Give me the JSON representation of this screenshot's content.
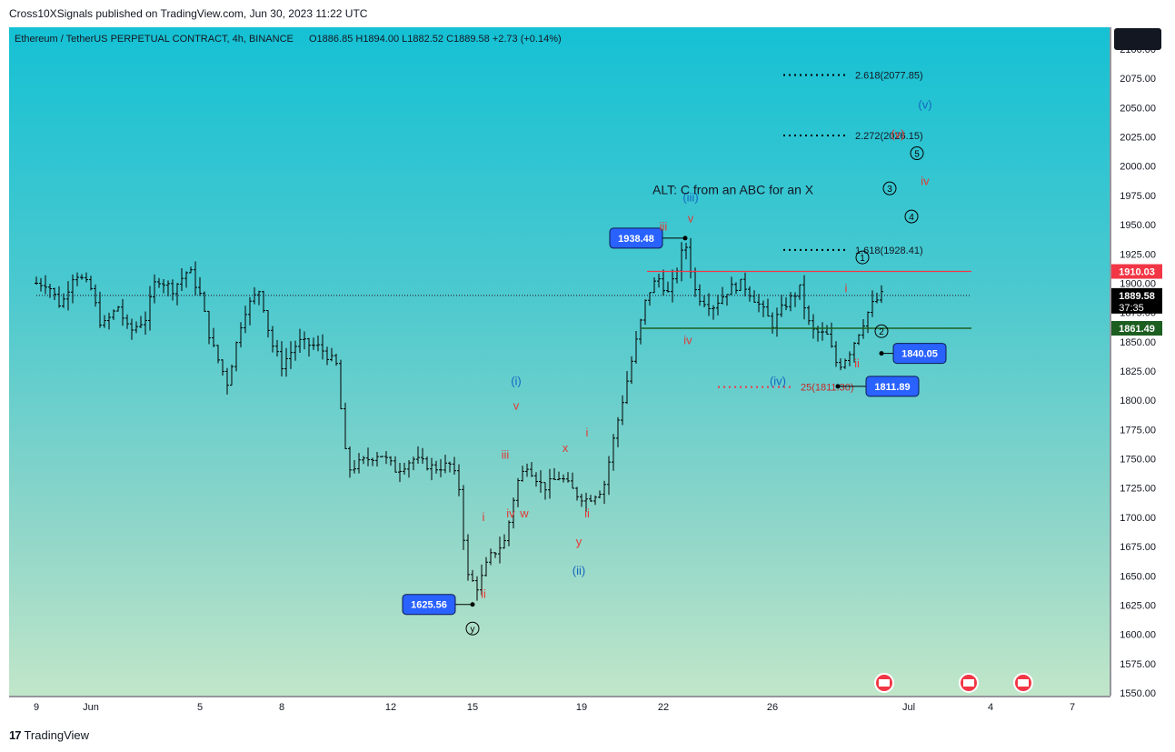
{
  "header": {
    "publisher_line": "Cross10XSignals published on TradingView.com, Jun 30, 2023 11:22 UTC"
  },
  "footer": {
    "brand": "TradingView",
    "logo_glyph": "17"
  },
  "chart_data": {
    "type": "candlestick",
    "title": "Ethereum / TetherUS PERPETUAL CONTRACT, 4h, BINANCE",
    "ohlc_text": {
      "open": "O1886.85",
      "high": "H1894.00",
      "low": "L1882.52",
      "close": "C1889.58",
      "change": "+2.73 (+0.14%)"
    },
    "ylim": [
      1550,
      2100
    ],
    "y_ticks": [
      1550,
      1575,
      1600,
      1625,
      1650,
      1675,
      1700,
      1725,
      1750,
      1775,
      1800,
      1825,
      1850,
      1875,
      1900,
      1925,
      1950,
      1975,
      2000,
      2025,
      2050,
      2075,
      2100
    ],
    "x_ticks": [
      {
        "label": "9",
        "d": -0.4
      },
      {
        "label": "Jun",
        "d": 1.6
      },
      {
        "label": "5",
        "d": 5.6
      },
      {
        "label": "8",
        "d": 8.6
      },
      {
        "label": "12",
        "d": 12.6
      },
      {
        "label": "15",
        "d": 15.6
      },
      {
        "label": "19",
        "d": 19.6
      },
      {
        "label": "22",
        "d": 22.6
      },
      {
        "label": "26",
        "d": 26.6
      },
      {
        "label": "Jul",
        "d": 31.6
      },
      {
        "label": "4",
        "d": 34.6
      },
      {
        "label": "7",
        "d": 37.6
      }
    ],
    "price_path": [
      {
        "d": 0.0,
        "p": 1900
      },
      {
        "d": 0.5,
        "p": 1880
      },
      {
        "d": 1.0,
        "p": 1910
      },
      {
        "d": 1.6,
        "p": 1895
      },
      {
        "d": 2.0,
        "p": 1862
      },
      {
        "d": 2.6,
        "p": 1880
      },
      {
        "d": 3.0,
        "p": 1858
      },
      {
        "d": 3.6,
        "p": 1870
      },
      {
        "d": 4.0,
        "p": 1905
      },
      {
        "d": 4.6,
        "p": 1895
      },
      {
        "d": 5.2,
        "p": 1912
      },
      {
        "d": 5.6,
        "p": 1890
      },
      {
        "d": 6.0,
        "p": 1850
      },
      {
        "d": 6.6,
        "p": 1815
      },
      {
        "d": 7.2,
        "p": 1875
      },
      {
        "d": 7.8,
        "p": 1895
      },
      {
        "d": 8.2,
        "p": 1850
      },
      {
        "d": 8.6,
        "p": 1830
      },
      {
        "d": 9.2,
        "p": 1850
      },
      {
        "d": 10.0,
        "p": 1845
      },
      {
        "d": 10.6,
        "p": 1830
      },
      {
        "d": 11.0,
        "p": 1740
      },
      {
        "d": 11.6,
        "p": 1748
      },
      {
        "d": 12.2,
        "p": 1755
      },
      {
        "d": 12.8,
        "p": 1740
      },
      {
        "d": 13.4,
        "p": 1750
      },
      {
        "d": 14.2,
        "p": 1742
      },
      {
        "d": 14.8,
        "p": 1745
      },
      {
        "d": 15.1,
        "p": 1725
      },
      {
        "d": 15.4,
        "p": 1650
      },
      {
        "d": 15.8,
        "p": 1640
      },
      {
        "d": 16.2,
        "p": 1665
      },
      {
        "d": 16.8,
        "p": 1680
      },
      {
        "d": 17.2,
        "p": 1728
      },
      {
        "d": 17.6,
        "p": 1745
      },
      {
        "d": 18.2,
        "p": 1725
      },
      {
        "d": 18.8,
        "p": 1735
      },
      {
        "d": 19.4,
        "p": 1720
      },
      {
        "d": 19.8,
        "p": 1715
      },
      {
        "d": 20.4,
        "p": 1725
      },
      {
        "d": 20.8,
        "p": 1770
      },
      {
        "d": 21.2,
        "p": 1810
      },
      {
        "d": 21.6,
        "p": 1850
      },
      {
        "d": 22.0,
        "p": 1890
      },
      {
        "d": 22.4,
        "p": 1905
      },
      {
        "d": 22.8,
        "p": 1890
      },
      {
        "d": 23.4,
        "p": 1935
      },
      {
        "d": 23.8,
        "p": 1890
      },
      {
        "d": 24.4,
        "p": 1880
      },
      {
        "d": 25.0,
        "p": 1895
      },
      {
        "d": 25.5,
        "p": 1900
      },
      {
        "d": 26.0,
        "p": 1885
      },
      {
        "d": 26.6,
        "p": 1865
      },
      {
        "d": 27.0,
        "p": 1880
      },
      {
        "d": 27.6,
        "p": 1895
      },
      {
        "d": 28.0,
        "p": 1860
      },
      {
        "d": 28.6,
        "p": 1855
      },
      {
        "d": 29.0,
        "p": 1828
      },
      {
        "d": 29.4,
        "p": 1840
      },
      {
        "d": 29.8,
        "p": 1860
      },
      {
        "d": 30.2,
        "p": 1880
      },
      {
        "d": 30.6,
        "p": 1889.58
      }
    ],
    "levels": [
      {
        "name": "resistance",
        "price": 1910.03,
        "color": "#f23645",
        "d_from": 22.0,
        "d_to": 33.9
      },
      {
        "name": "support",
        "price": 1861.49,
        "color": "#1b5e20",
        "d_from": 21.8,
        "d_to": 33.9
      },
      {
        "name": "current-price",
        "price": 1889.58,
        "color": "#2a2e39",
        "d_from": -0.4,
        "d_to": 33.9
      }
    ],
    "price_badges": [
      {
        "price": "1910.03",
        "value": 1910.03,
        "bg": "#f23645",
        "fg": "#ffffff"
      },
      {
        "price": "1889.58",
        "value": 1889.58,
        "bg": "#000000",
        "fg": "#ffffff",
        "sub": "37:35"
      },
      {
        "price": "1861.49",
        "value": 1861.49,
        "bg": "#1b5e20",
        "fg": "#ffffff"
      }
    ],
    "fib_levels": [
      {
        "label": "2.618(2077.85)",
        "price": 2077.85,
        "color": "#000000",
        "d_from": 27.0,
        "d_to": 29.3
      },
      {
        "label": "2.272(2026.15)",
        "price": 2026.15,
        "color": "#000000",
        "d_from": 27.0,
        "d_to": 29.3
      },
      {
        "label": "1.618(1928.41)",
        "price": 1928.41,
        "color": "#000000",
        "d_from": 27.0,
        "d_to": 29.3
      },
      {
        "label": "25(1811.30)",
        "price": 1811.3,
        "color": "#f23645",
        "d_from": 24.6,
        "d_to": 27.3
      }
    ],
    "callouts": [
      {
        "label": "1938.48",
        "d": 21.6,
        "p": 1938.48,
        "dot_d": 23.4
      },
      {
        "label": "1625.56",
        "d": 14.0,
        "p": 1625.56,
        "dot_d": 15.6
      },
      {
        "label": "1840.05",
        "d": 32.0,
        "p": 1840.05,
        "dot_d": 30.6
      },
      {
        "label": "1811.89",
        "d": 31.0,
        "p": 1811.89,
        "dot_d": 29.0
      }
    ],
    "wave_labels": [
      {
        "text": "iii",
        "d": 22.6,
        "p": 1945,
        "color": "#e53935"
      },
      {
        "text": "(iii)",
        "d": 23.6,
        "p": 1970,
        "color": "#1565c0"
      },
      {
        "text": "v",
        "d": 23.6,
        "p": 1952,
        "color": "#e53935"
      },
      {
        "text": "iv",
        "d": 23.5,
        "p": 1848,
        "color": "#e53935"
      },
      {
        "text": "(iv)",
        "d": 26.8,
        "p": 1813,
        "color": "#1565c0"
      },
      {
        "text": "i",
        "d": 29.3,
        "p": 1892,
        "color": "#e53935"
      },
      {
        "text": "ii",
        "d": 29.7,
        "p": 1828,
        "color": "#e53935"
      },
      {
        "text": "(v)",
        "d": 32.2,
        "p": 2049,
        "color": "#1565c0"
      },
      {
        "text": "(v)",
        "d": 31.2,
        "p": 2024,
        "color": "#e53935"
      },
      {
        "text": "iv",
        "d": 32.2,
        "p": 1984,
        "color": "#e53935"
      },
      {
        "text": "(i)",
        "d": 17.2,
        "p": 1813,
        "color": "#1565c0"
      },
      {
        "text": "v",
        "d": 17.2,
        "p": 1792,
        "color": "#e53935"
      },
      {
        "text": "iii",
        "d": 16.8,
        "p": 1750,
        "color": "#e53935"
      },
      {
        "text": "iv",
        "d": 17.0,
        "p": 1700,
        "color": "#e53935"
      },
      {
        "text": "w",
        "d": 17.5,
        "p": 1700,
        "color": "#e53935"
      },
      {
        "text": "x",
        "d": 19.0,
        "p": 1756,
        "color": "#e53935"
      },
      {
        "text": "i",
        "d": 19.8,
        "p": 1769,
        "color": "#e53935"
      },
      {
        "text": "ii",
        "d": 19.8,
        "p": 1700,
        "color": "#e53935"
      },
      {
        "text": "y",
        "d": 19.5,
        "p": 1676,
        "color": "#e53935"
      },
      {
        "text": "(ii)",
        "d": 19.5,
        "p": 1651,
        "color": "#1565c0"
      },
      {
        "text": "i",
        "d": 16.0,
        "p": 1697,
        "color": "#e53935"
      },
      {
        "text": "ii",
        "d": 16.0,
        "p": 1631,
        "color": "#e53935"
      }
    ],
    "circle_labels": [
      {
        "text": "y",
        "d": 15.6,
        "p": 1605
      },
      {
        "text": "1",
        "d": 29.9,
        "p": 1922
      },
      {
        "text": "2",
        "d": 30.6,
        "p": 1859
      },
      {
        "text": "3",
        "d": 30.9,
        "p": 1981
      },
      {
        "text": "4",
        "d": 31.7,
        "p": 1957
      },
      {
        "text": "5",
        "d": 31.9,
        "p": 2011
      }
    ],
    "annotation": {
      "text": "ALT: C from an ABC for an X",
      "d": 22.2,
      "p": 1976
    }
  }
}
